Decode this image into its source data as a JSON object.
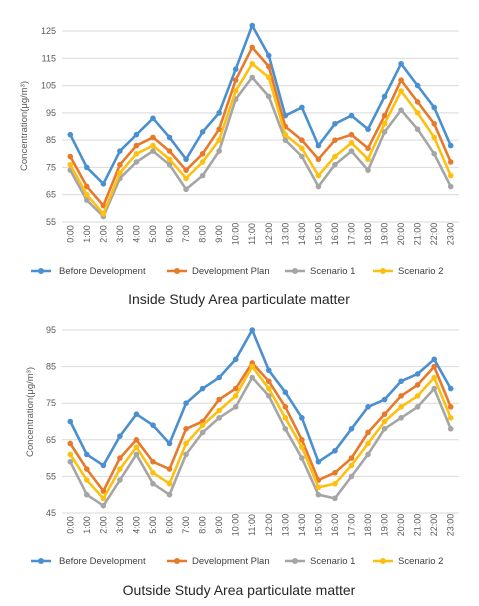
{
  "colors": {
    "before": "#4a8fcf",
    "plan": "#e8792b",
    "s1": "#a5a5a5",
    "s2": "#fdc010"
  },
  "chart_data": [
    {
      "type": "line",
      "caption": "Inside Study Area particulate matter",
      "ylabel": "Concentration(μg/m³)",
      "ylim": [
        55,
        125
      ],
      "yticks": [
        55,
        65,
        75,
        85,
        95,
        105,
        115,
        125
      ],
      "categories": [
        "0:00",
        "1:00",
        "2:00",
        "3:00",
        "4:00",
        "5:00",
        "6:00",
        "7:00",
        "8:00",
        "9:00",
        "10:00",
        "11:00",
        "12:00",
        "13:00",
        "14:00",
        "15:00",
        "16:00",
        "17:00",
        "18:00",
        "19:00",
        "20:00",
        "21:00",
        "22:00",
        "23:00"
      ],
      "legend_position": "bottom",
      "series": [
        {
          "name": "Before Development",
          "color_key": "before",
          "values": [
            87,
            75,
            69,
            81,
            87,
            93,
            86,
            78,
            88,
            95,
            111,
            127,
            116,
            94,
            97,
            83,
            91,
            94,
            89,
            101,
            113,
            105,
            97,
            83
          ]
        },
        {
          "name": "Development Plan",
          "color_key": "plan",
          "values": [
            79,
            68,
            61,
            76,
            83,
            86,
            81,
            74,
            80,
            89,
            107,
            119,
            112,
            90,
            85,
            78,
            85,
            87,
            82,
            94,
            107,
            99,
            91,
            77
          ]
        },
        {
          "name": "Scenario 1",
          "color_key": "s1",
          "values": [
            74,
            63,
            57,
            71,
            77,
            81,
            76,
            67,
            72,
            81,
            100,
            108,
            101,
            85,
            79,
            68,
            76,
            81,
            74,
            88,
            96,
            89,
            80,
            68
          ]
        },
        {
          "name": "Scenario 2",
          "color_key": "s2",
          "values": [
            76,
            65,
            58,
            73,
            80,
            83,
            78,
            71,
            77,
            85,
            103,
            113,
            108,
            87,
            82,
            72,
            79,
            84,
            78,
            91,
            103,
            95,
            86,
            72
          ]
        }
      ]
    },
    {
      "type": "line",
      "caption": "Outside Study Area particulate matter",
      "ylabel": "Concentration(μg/m³)",
      "ylim": [
        45,
        95
      ],
      "yticks": [
        45,
        55,
        65,
        75,
        85,
        95
      ],
      "categories": [
        "0:00",
        "1:00",
        "2:00",
        "3:00",
        "4:00",
        "5:00",
        "6:00",
        "7:00",
        "8:00",
        "9:00",
        "10:00",
        "11:00",
        "12:00",
        "13:00",
        "14:00",
        "15:00",
        "16:00",
        "17:00",
        "18:00",
        "19:00",
        "20:00",
        "21:00",
        "22:00",
        "23:00"
      ],
      "legend_position": "bottom",
      "series": [
        {
          "name": "Before Development",
          "color_key": "before",
          "values": [
            70,
            61,
            58,
            66,
            72,
            69,
            64,
            75,
            79,
            82,
            87,
            95,
            84,
            78,
            71,
            59,
            62,
            68,
            74,
            76,
            81,
            83,
            87,
            79
          ]
        },
        {
          "name": "Development Plan",
          "color_key": "plan",
          "values": [
            64,
            57,
            51,
            60,
            65,
            59,
            57,
            68,
            70,
            76,
            79,
            86,
            81,
            74,
            65,
            54,
            56,
            60,
            67,
            72,
            77,
            80,
            85,
            74
          ]
        },
        {
          "name": "Scenario 1",
          "color_key": "s1",
          "values": [
            59,
            50,
            47,
            54,
            61,
            53,
            50,
            61,
            67,
            71,
            74,
            82,
            77,
            68,
            60,
            50,
            49,
            55,
            61,
            68,
            71,
            74,
            79,
            68
          ]
        },
        {
          "name": "Scenario 2",
          "color_key": "s2",
          "values": [
            61,
            54,
            49,
            57,
            63,
            56,
            53,
            64,
            69,
            73,
            77,
            85,
            79,
            71,
            63,
            52,
            53,
            58,
            64,
            70,
            74,
            77,
            82,
            71
          ]
        }
      ]
    }
  ]
}
